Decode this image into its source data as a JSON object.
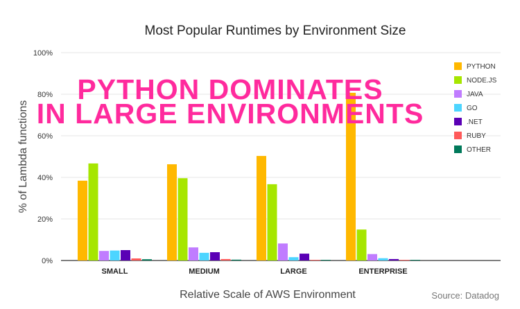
{
  "chart_data": {
    "type": "bar",
    "title": "Most Popular Runtimes by Environment Size",
    "annotation": [
      "PYTHON DOMINATES",
      "IN LARGE ENVIRONMENTS"
    ],
    "xlabel": "Relative Scale of AWS Environment",
    "ylabel": "% of Lambda functions",
    "source": "Source: Datadog",
    "ylim": [
      0,
      100
    ],
    "yticks": [
      "0%",
      "20%",
      "40%",
      "60%",
      "80%",
      "100%"
    ],
    "grid": true,
    "legend_position": "right",
    "categories": [
      "SMALL",
      "MEDIUM",
      "LARGE",
      "ENTERPRISE"
    ],
    "series": [
      {
        "name": "PYTHON",
        "color": "#FFB800",
        "values": [
          38.4,
          46.3,
          50.3,
          80.7
        ]
      },
      {
        "name": "NODE.JS",
        "color": "#A6E600",
        "values": [
          46.7,
          39.6,
          36.7,
          14.9
        ]
      },
      {
        "name": "JAVA",
        "color": "#C07CFF",
        "values": [
          4.6,
          6.3,
          8.2,
          3.1
        ]
      },
      {
        "name": "GO",
        "color": "#4DD5FF",
        "values": [
          4.8,
          3.7,
          1.6,
          1.1
        ]
      },
      {
        "name": ".NET",
        "color": "#5A00B5",
        "values": [
          5.0,
          4.0,
          3.3,
          0.7
        ]
      },
      {
        "name": "RUBY",
        "color": "#FF5A5A",
        "values": [
          1.0,
          0.7,
          0.3,
          0.3
        ]
      },
      {
        "name": "OTHER",
        "color": "#00795A",
        "values": [
          0.6,
          0.4,
          0.3,
          0.3
        ]
      }
    ]
  }
}
